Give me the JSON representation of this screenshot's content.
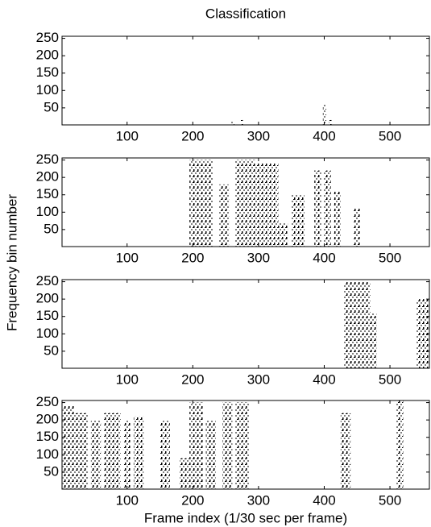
{
  "title": "Classification",
  "xlabel": "Frame index (1/30 sec per frame)",
  "ylabel": "Frequency bin number",
  "chart_data": [
    {
      "type": "mask",
      "xlim": [
        1,
        560
      ],
      "ylim": [
        1,
        256
      ],
      "xticks": [
        100,
        200,
        300,
        400,
        500
      ],
      "yticks": [
        50,
        100,
        150,
        200,
        250
      ],
      "bursts": [
        {
          "x": [
            258,
            263
          ],
          "top": 10
        },
        {
          "x": [
            273,
            277
          ],
          "top": 15
        },
        {
          "x": [
            398,
            403
          ],
          "top": 60
        },
        {
          "x": [
            407,
            412
          ],
          "top": 15
        }
      ]
    },
    {
      "type": "mask",
      "xlim": [
        1,
        560
      ],
      "ylim": [
        1,
        256
      ],
      "xticks": [
        100,
        200,
        300,
        400,
        500
      ],
      "yticks": [
        50,
        100,
        150,
        200,
        250
      ],
      "bursts": [
        {
          "x": [
            195,
            230
          ],
          "top": 250
        },
        {
          "x": [
            240,
            255
          ],
          "top": 180
        },
        {
          "x": [
            265,
            295
          ],
          "top": 250
        },
        {
          "x": [
            295,
            330
          ],
          "top": 240
        },
        {
          "x": [
            330,
            345
          ],
          "top": 70
        },
        {
          "x": [
            350,
            370
          ],
          "top": 150
        },
        {
          "x": [
            385,
            395
          ],
          "top": 220
        },
        {
          "x": [
            400,
            410
          ],
          "top": 220
        },
        {
          "x": [
            415,
            425
          ],
          "top": 160
        },
        {
          "x": [
            445,
            455
          ],
          "top": 110
        }
      ]
    },
    {
      "type": "mask",
      "xlim": [
        1,
        560
      ],
      "ylim": [
        1,
        256
      ],
      "xticks": [
        100,
        200,
        300,
        400,
        500
      ],
      "yticks": [
        50,
        100,
        150,
        200,
        250
      ],
      "bursts": [
        {
          "x": [
            430,
            470
          ],
          "top": 250
        },
        {
          "x": [
            470,
            480
          ],
          "top": 160
        },
        {
          "x": [
            540,
            580
          ],
          "top": 200
        }
      ]
    },
    {
      "type": "mask",
      "xlim": [
        1,
        560
      ],
      "ylim": [
        1,
        256
      ],
      "xticks": [
        100,
        200,
        300,
        400,
        500
      ],
      "yticks": [
        50,
        100,
        150,
        200,
        250
      ],
      "bursts": [
        {
          "x": [
            2,
            20
          ],
          "top": 240
        },
        {
          "x": [
            20,
            40
          ],
          "top": 220
        },
        {
          "x": [
            45,
            60
          ],
          "top": 200
        },
        {
          "x": [
            65,
            90
          ],
          "top": 220
        },
        {
          "x": [
            95,
            105
          ],
          "top": 200
        },
        {
          "x": [
            110,
            125
          ],
          "top": 210
        },
        {
          "x": [
            150,
            165
          ],
          "top": 200
        },
        {
          "x": [
            180,
            195
          ],
          "top": 90
        },
        {
          "x": [
            195,
            215
          ],
          "top": 250
        },
        {
          "x": [
            220,
            235
          ],
          "top": 200
        },
        {
          "x": [
            245,
            260
          ],
          "top": 250
        },
        {
          "x": [
            265,
            285
          ],
          "top": 250
        },
        {
          "x": [
            425,
            440
          ],
          "top": 220
        },
        {
          "x": [
            510,
            520
          ],
          "top": 256
        }
      ]
    }
  ]
}
